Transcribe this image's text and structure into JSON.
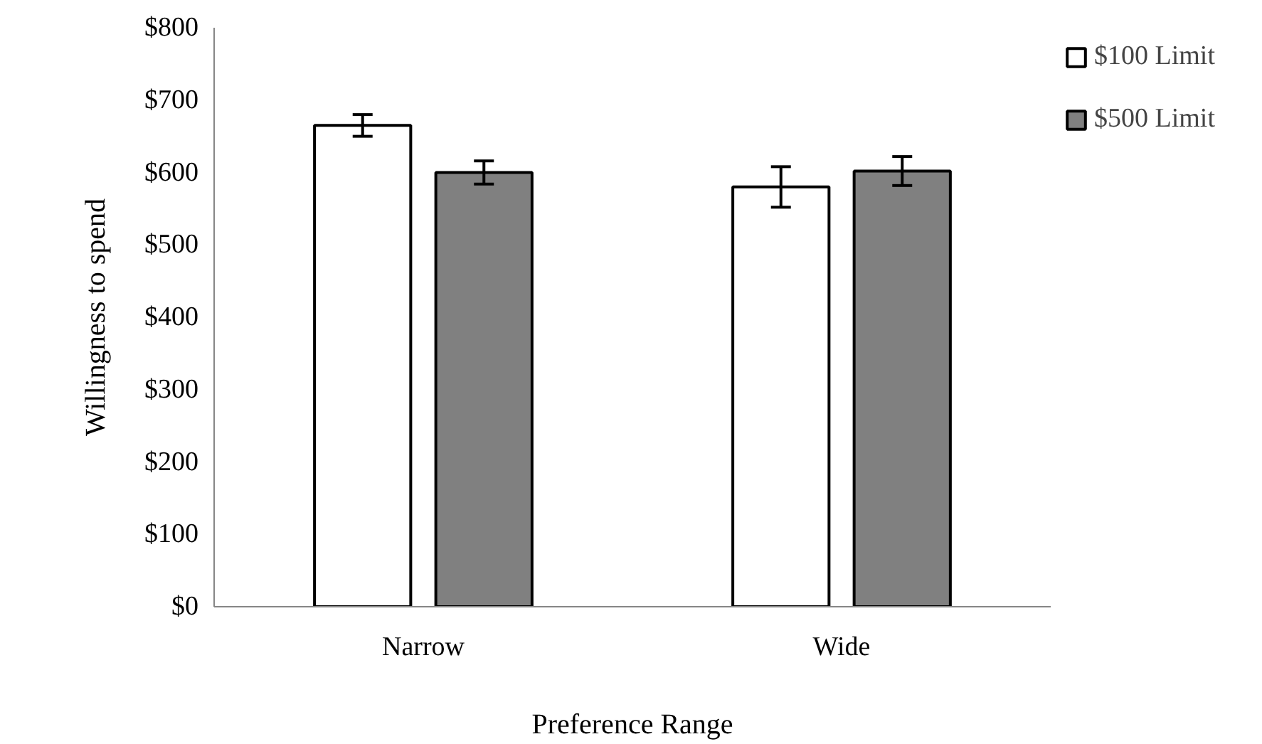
{
  "chart_data": {
    "type": "bar",
    "xlabel": "Preference Range",
    "ylabel": "Willingness to spend",
    "categories": [
      "Narrow",
      "Wide"
    ],
    "series": [
      {
        "name": "$100 Limit",
        "color": "#ffffff",
        "values": [
          665,
          580
        ],
        "errors": [
          15,
          28
        ]
      },
      {
        "name": "$500 Limit",
        "color": "#808080",
        "values": [
          600,
          602
        ],
        "errors": [
          16,
          20
        ]
      }
    ],
    "ylim": [
      0,
      800
    ],
    "yticks": [
      {
        "value": 0,
        "label": "$0"
      },
      {
        "value": 100,
        "label": "$100"
      },
      {
        "value": 200,
        "label": "$200"
      },
      {
        "value": 300,
        "label": "$300"
      },
      {
        "value": 400,
        "label": "$400"
      },
      {
        "value": 500,
        "label": "$500"
      },
      {
        "value": 600,
        "label": "$600"
      },
      {
        "value": 700,
        "label": "$700"
      },
      {
        "value": 800,
        "label": "$800"
      }
    ],
    "grid": false,
    "legend": "top right"
  }
}
